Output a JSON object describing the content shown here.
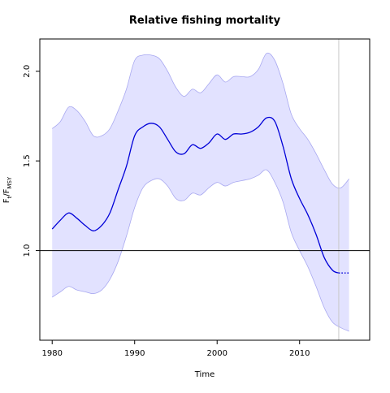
{
  "chart_data": {
    "type": "line",
    "title": "Relative fishing mortality",
    "xlabel": "Time",
    "ylabel": {
      "main": "F",
      "sub1": "t",
      "sep": "/F",
      "sub2": "MSY"
    },
    "xlim": [
      1978.5,
      2018.5
    ],
    "ylim": [
      0.5,
      2.18
    ],
    "x_ticks": [
      1980,
      1990,
      2000,
      2010
    ],
    "y_ticks": [
      1.0,
      1.5,
      2.0
    ],
    "x_tick_labels": [
      "1980",
      "1990",
      "2000",
      "2010"
    ],
    "y_tick_labels": [
      "1.0",
      "1.5",
      "2.0"
    ],
    "reference_line_y": 1.0,
    "forecast_start_x": 2014.75,
    "grid": false,
    "legend": "none",
    "series": [
      {
        "role": "estimate",
        "style": "solid",
        "x": [
          1980,
          1981,
          1982,
          1983,
          1984,
          1985,
          1986,
          1987,
          1988,
          1989,
          1990,
          1991,
          1992,
          1993,
          1994,
          1995,
          1996,
          1997,
          1998,
          1999,
          2000,
          2001,
          2002,
          2003,
          2004,
          2005,
          2006,
          2007,
          2008,
          2009,
          2010,
          2011,
          2012,
          2013,
          2014,
          2014.75
        ],
        "values": [
          1.12,
          1.17,
          1.21,
          1.18,
          1.14,
          1.11,
          1.14,
          1.21,
          1.34,
          1.47,
          1.64,
          1.69,
          1.71,
          1.69,
          1.62,
          1.55,
          1.54,
          1.59,
          1.57,
          1.6,
          1.65,
          1.62,
          1.65,
          1.65,
          1.66,
          1.69,
          1.74,
          1.72,
          1.58,
          1.4,
          1.29,
          1.2,
          1.09,
          0.96,
          0.89,
          0.875
        ]
      },
      {
        "role": "forecast",
        "style": "dotted",
        "x": [
          2014.75,
          2015,
          2016
        ],
        "values": [
          0.875,
          0.875,
          0.875
        ]
      }
    ],
    "confidence_band": {
      "x": [
        1980,
        1981,
        1982,
        1983,
        1984,
        1985,
        1986,
        1987,
        1988,
        1989,
        1990,
        1991,
        1992,
        1993,
        1994,
        1995,
        1996,
        1997,
        1998,
        1999,
        2000,
        2001,
        2002,
        2003,
        2004,
        2005,
        2006,
        2007,
        2008,
        2009,
        2010,
        2011,
        2012,
        2013,
        2014,
        2015,
        2016
      ],
      "upper": [
        1.68,
        1.72,
        1.8,
        1.78,
        1.72,
        1.64,
        1.64,
        1.68,
        1.78,
        1.9,
        2.06,
        2.09,
        2.09,
        2.07,
        2.0,
        1.91,
        1.86,
        1.9,
        1.88,
        1.93,
        1.98,
        1.94,
        1.97,
        1.97,
        1.97,
        2.01,
        2.1,
        2.06,
        1.93,
        1.76,
        1.68,
        1.62,
        1.54,
        1.45,
        1.37,
        1.35,
        1.4
      ],
      "lower": [
        0.74,
        0.77,
        0.8,
        0.78,
        0.77,
        0.76,
        0.78,
        0.84,
        0.94,
        1.08,
        1.24,
        1.35,
        1.39,
        1.4,
        1.36,
        1.29,
        1.28,
        1.32,
        1.31,
        1.35,
        1.38,
        1.36,
        1.38,
        1.39,
        1.4,
        1.42,
        1.45,
        1.38,
        1.27,
        1.1,
        1.0,
        0.91,
        0.8,
        0.68,
        0.6,
        0.57,
        0.55
      ]
    },
    "colors": {
      "line": "#0000d8",
      "band_fill": "#e2e2ff",
      "band_edge": "#a8a8f0",
      "reference": "#000000",
      "forecast_marker": "#c8c8c8",
      "axes": "#000000"
    }
  }
}
